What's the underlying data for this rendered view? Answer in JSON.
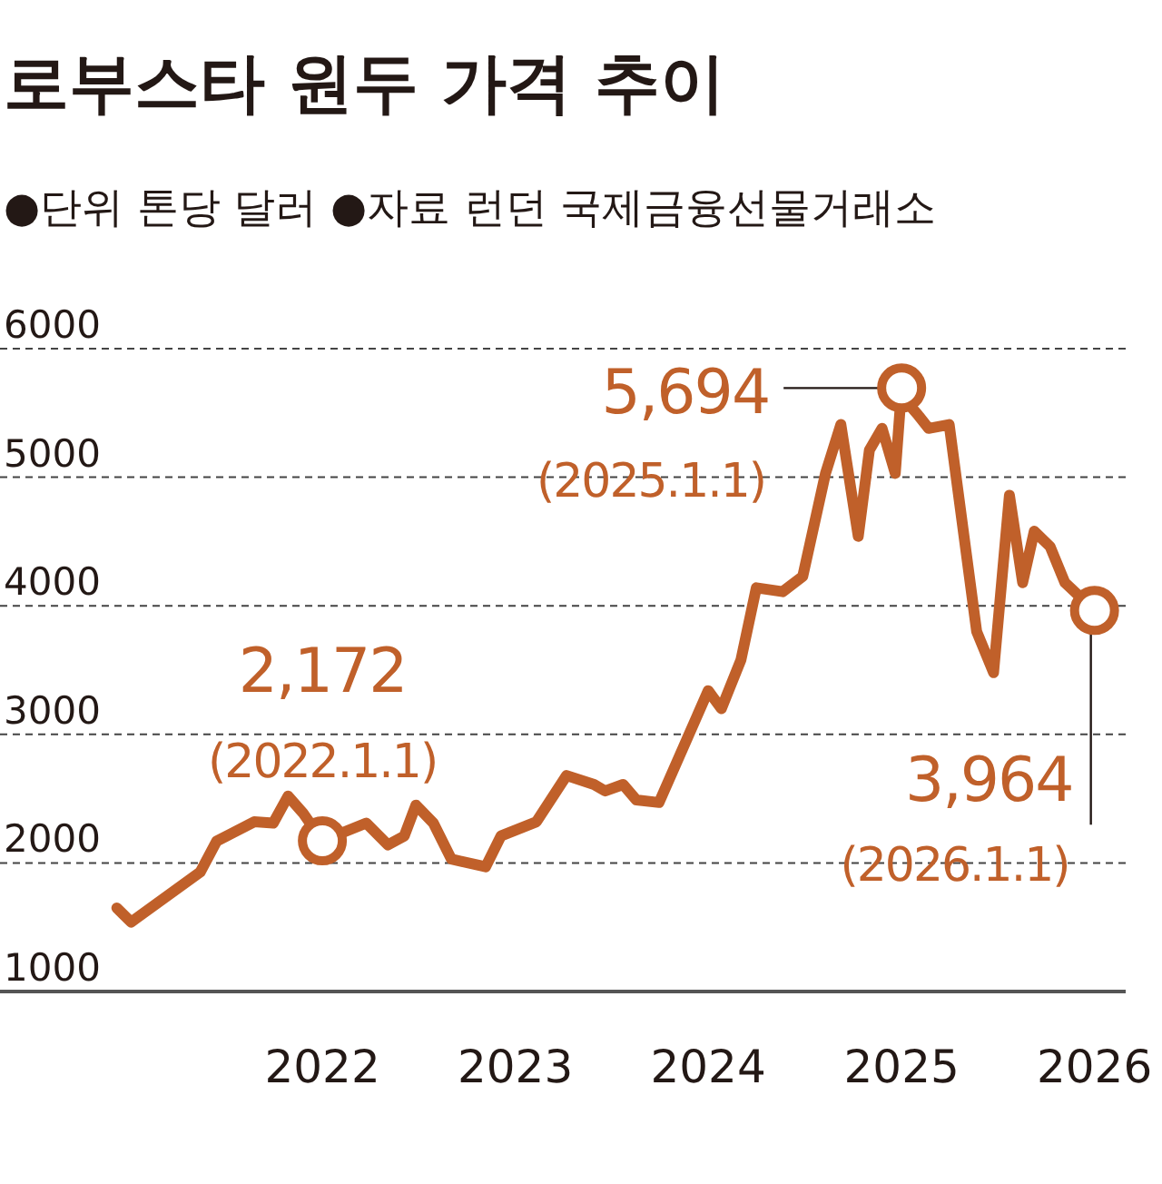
{
  "chart_data": {
    "type": "line",
    "title": "로부스타 원두 가격 추이",
    "subtitle": "●단위  톤당 달러 ●자료 런던 국제금융선물거래소",
    "x": [
      "2020-12-08",
      "2021-01-04",
      "2021-05-15",
      "2021-06-15",
      "2021-08-25",
      "2021-09-30",
      "2021-10-28",
      "2021-11-25",
      "2022-01-01",
      "2022-03-25",
      "2022-05-05",
      "2022-06-05",
      "2022-06-27",
      "2022-07-30",
      "2022-09-02",
      "2022-11-06",
      "2022-12-05",
      "2023-02-10",
      "2023-04-08",
      "2023-05-30",
      "2023-06-20",
      "2023-07-24",
      "2023-08-18",
      "2023-09-30",
      "2024-01-01",
      "2024-01-26",
      "2024-03-03",
      "2024-04-01",
      "2024-05-21",
      "2024-06-28",
      "2024-08-10",
      "2024-09-08",
      "2024-10-11",
      "2024-11-01",
      "2024-11-25",
      "2024-12-20",
      "2025-01-01",
      "2025-01-16",
      "2025-01-31",
      "2025-02-21",
      "2025-04-01",
      "2025-05-23",
      "2025-06-24",
      "2025-07-24",
      "2025-08-18",
      "2025-09-09",
      "2025-10-09",
      "2025-11-06",
      "2026-01-01"
    ],
    "series": [
      {
        "color": "#c0602a",
        "values": [
          1650,
          1540,
          1930,
          2170,
          2320,
          2310,
          2520,
          2390,
          2172,
          2310,
          2140,
          2210,
          2450,
          2310,
          2030,
          1970,
          2210,
          2320,
          2680,
          2610,
          2560,
          2610,
          2490,
          2470,
          3340,
          3200,
          3580,
          4140,
          4110,
          4230,
          5030,
          5410,
          4540,
          5210,
          5380,
          5030,
          5694,
          5560,
          5490,
          5380,
          5410,
          3800,
          3480,
          4860,
          4180,
          4580,
          4460,
          4180,
          3964
        ]
      }
    ],
    "xlim": [
      "2020-05-01",
      "2026-03-01"
    ],
    "xticks": [
      {
        "value": "2022-01-01",
        "label": "2022"
      },
      {
        "value": "2023-01-01",
        "label": "2023"
      },
      {
        "value": "2024-01-01",
        "label": "2024"
      },
      {
        "value": "2025-01-01",
        "label": "2025"
      },
      {
        "value": "2026-01-01",
        "label": "2026"
      }
    ],
    "ylim": [
      1000,
      6000
    ],
    "yticks": [
      1000,
      2000,
      3000,
      4000,
      5000,
      6000
    ],
    "grid": "y",
    "annotations": [
      {
        "text": "2,172",
        "x": "2022-01-01",
        "y": 2172
      },
      "(2022.1.1)",
      {
        "text": "5,694",
        "x": "2025-01-01",
        "y": 5694
      },
      "(2025.1.1)",
      {
        "text": "3,964",
        "x": "2026-01-01",
        "y": 3964
      },
      "(2026.1.1)"
    ]
  }
}
